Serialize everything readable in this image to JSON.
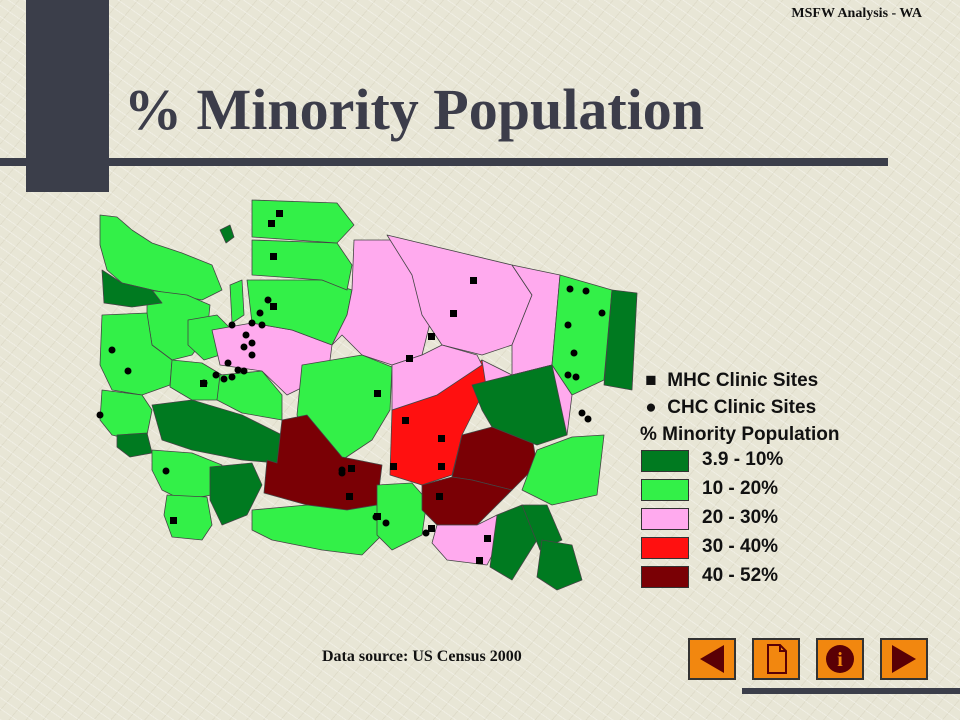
{
  "header": {
    "text": "MSFW Analysis - WA"
  },
  "title": "% Minority Population",
  "legend": {
    "mhc_label": "MHC Clinic Sites",
    "chc_label": "CHC Clinic Sites",
    "pop_title": "% Minority Population",
    "classes": [
      {
        "label": "3.9 - 10%",
        "color": "#007a20"
      },
      {
        "label": "10 - 20%",
        "color": "#33f048"
      },
      {
        "label": "20 - 30%",
        "color": "#ffaaee"
      },
      {
        "label": "30 - 40%",
        "color": "#ff1010"
      },
      {
        "label": "40 - 52%",
        "color": "#7a0005"
      }
    ]
  },
  "source": "Data source: US Census 2000",
  "nav": [
    {
      "name": "previous-slide-button",
      "icon": "arrow-left-icon"
    },
    {
      "name": "document-button",
      "icon": "document-icon"
    },
    {
      "name": "info-button",
      "icon": "info-icon"
    },
    {
      "name": "next-slide-button",
      "icon": "arrow-right-icon"
    }
  ]
}
